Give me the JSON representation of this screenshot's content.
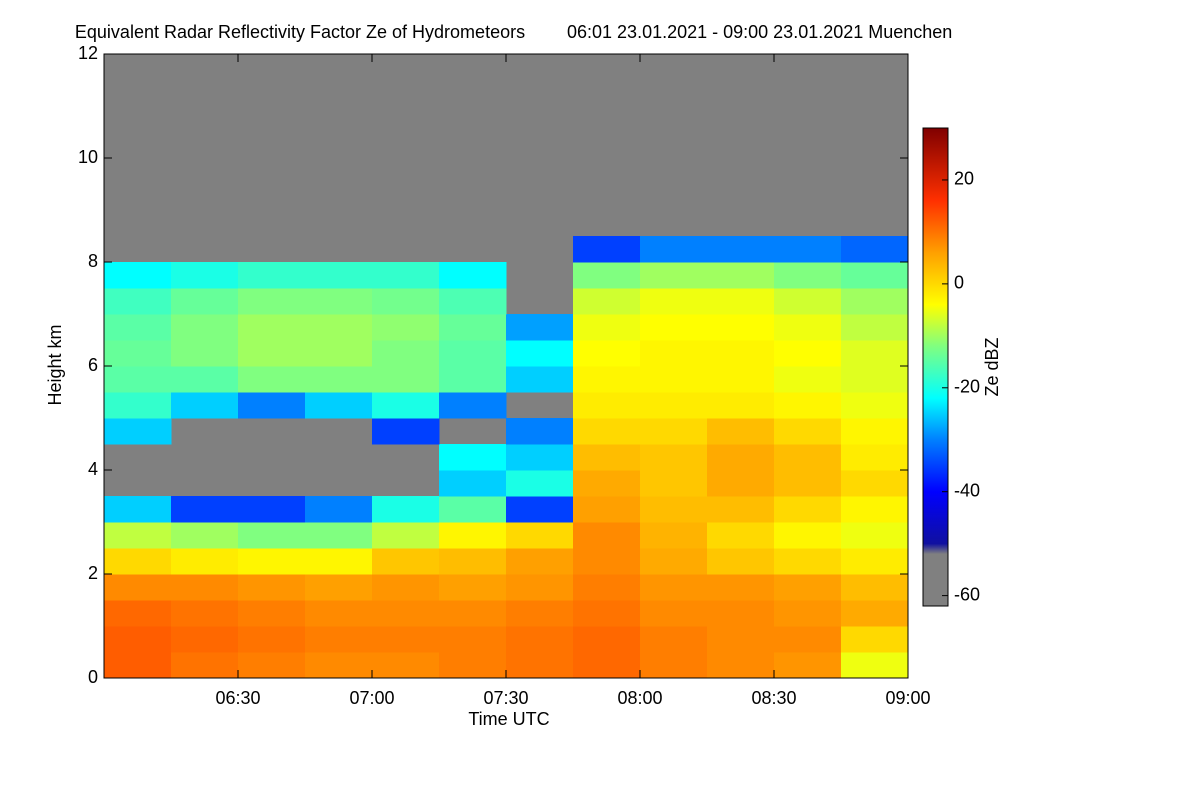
{
  "chart_data": {
    "type": "heatmap",
    "title": "Equivalent Radar Reflectivity Factor Ze of Hydrometeors",
    "subtitle": "06:01 23.01.2021 - 09:00 23.01.2021 Muenchen",
    "xlabel": "Time UTC",
    "ylabel": "Height km",
    "colorbar_label": "Ze dBZ",
    "xlim": [
      6.0,
      9.0
    ],
    "xticks": [
      {
        "value": 6.5,
        "label": "06:30"
      },
      {
        "value": 7.0,
        "label": "07:00"
      },
      {
        "value": 7.5,
        "label": "07:30"
      },
      {
        "value": 8.0,
        "label": "08:00"
      },
      {
        "value": 8.5,
        "label": "08:30"
      },
      {
        "value": 9.0,
        "label": "09:00"
      }
    ],
    "ylim": [
      0,
      12
    ],
    "yticks": [
      0,
      2,
      4,
      6,
      8,
      10,
      12
    ],
    "clim": [
      -62,
      30
    ],
    "cticks": [
      20,
      0,
      -20,
      -40,
      -60
    ],
    "nan_color": "#808080",
    "colormap": [
      [
        -62,
        "#808080"
      ],
      [
        -52,
        "#808080"
      ],
      [
        -50,
        "#1010a0"
      ],
      [
        -40,
        "#0000ff"
      ],
      [
        -30,
        "#0080ff"
      ],
      [
        -22,
        "#00ffff"
      ],
      [
        -12,
        "#80ff80"
      ],
      [
        -4,
        "#ffff00"
      ],
      [
        6,
        "#ffa000"
      ],
      [
        16,
        "#ff3000"
      ],
      [
        30,
        "#800000"
      ]
    ],
    "x": [
      6.125,
      6.375,
      6.625,
      6.875,
      7.125,
      7.375,
      7.625,
      7.875,
      8.125,
      8.375,
      8.625,
      8.875
    ],
    "y": [
      0.25,
      0.75,
      1.25,
      1.75,
      2.25,
      2.75,
      3.25,
      3.75,
      4.25,
      4.75,
      5.25,
      5.75,
      6.25,
      6.75,
      7.25,
      7.75,
      8.25,
      8.75,
      9.25,
      9.75,
      10.25,
      10.75,
      11.25,
      11.75
    ],
    "values": [
      [
        12,
        10,
        9,
        8,
        8,
        9,
        10,
        11,
        9,
        8,
        7,
        -5
      ],
      [
        12,
        11,
        10,
        9,
        9,
        9,
        10,
        11,
        9,
        8,
        8,
        0
      ],
      [
        11,
        10,
        9,
        8,
        8,
        8,
        9,
        10,
        8,
        8,
        7,
        5
      ],
      [
        8,
        8,
        7,
        6,
        7,
        6,
        7,
        9,
        7,
        7,
        6,
        3
      ],
      [
        0,
        -2,
        -3,
        -3,
        2,
        3,
        6,
        8,
        5,
        2,
        0,
        -2
      ],
      [
        -8,
        -10,
        -12,
        -12,
        -8,
        -3,
        0,
        8,
        4,
        0,
        -3,
        -5
      ],
      [
        -25,
        -35,
        -35,
        -30,
        -20,
        -15,
        -35,
        6,
        3,
        3,
        0,
        -3
      ],
      [
        null,
        null,
        null,
        null,
        null,
        -25,
        -20,
        5,
        2,
        5,
        3,
        0
      ],
      [
        null,
        null,
        null,
        null,
        null,
        -22,
        -25,
        3,
        2,
        5,
        3,
        -2
      ],
      [
        -25,
        null,
        null,
        null,
        -35,
        null,
        -30,
        0,
        0,
        3,
        0,
        -3
      ],
      [
        -18,
        -25,
        -30,
        -25,
        -20,
        -30,
        null,
        -2,
        -2,
        -2,
        -3,
        -5
      ],
      [
        -15,
        -15,
        -12,
        -12,
        -12,
        -15,
        -25,
        -3,
        -3,
        -3,
        -5,
        -6
      ],
      [
        -14,
        -12,
        -10,
        -10,
        -12,
        -15,
        -22,
        -4,
        -3,
        -3,
        -4,
        -6
      ],
      [
        -15,
        -12,
        -10,
        -10,
        -11,
        -14,
        -28,
        -5,
        -4,
        -4,
        -5,
        -8
      ],
      [
        -17,
        -14,
        -12,
        -12,
        -13,
        -16,
        null,
        -7,
        -5,
        -5,
        -7,
        -10
      ],
      [
        -22,
        -20,
        -18,
        -18,
        -18,
        -22,
        null,
        -12,
        -10,
        -10,
        -12,
        -14
      ],
      [
        null,
        null,
        null,
        null,
        null,
        null,
        null,
        -35,
        -30,
        -30,
        -30,
        -32
      ],
      [
        null,
        null,
        null,
        null,
        null,
        null,
        null,
        null,
        null,
        null,
        null,
        null
      ],
      [
        null,
        null,
        null,
        null,
        null,
        null,
        null,
        null,
        null,
        null,
        null,
        null
      ],
      [
        null,
        null,
        null,
        null,
        null,
        null,
        null,
        null,
        null,
        null,
        null,
        null
      ],
      [
        null,
        null,
        null,
        null,
        null,
        null,
        null,
        null,
        null,
        null,
        null,
        null
      ],
      [
        null,
        null,
        null,
        null,
        null,
        null,
        null,
        null,
        null,
        null,
        null,
        null
      ],
      [
        null,
        null,
        null,
        null,
        null,
        null,
        null,
        null,
        null,
        null,
        null,
        null
      ],
      [
        null,
        null,
        null,
        null,
        null,
        null,
        null,
        null,
        null,
        null,
        null,
        null
      ]
    ]
  }
}
